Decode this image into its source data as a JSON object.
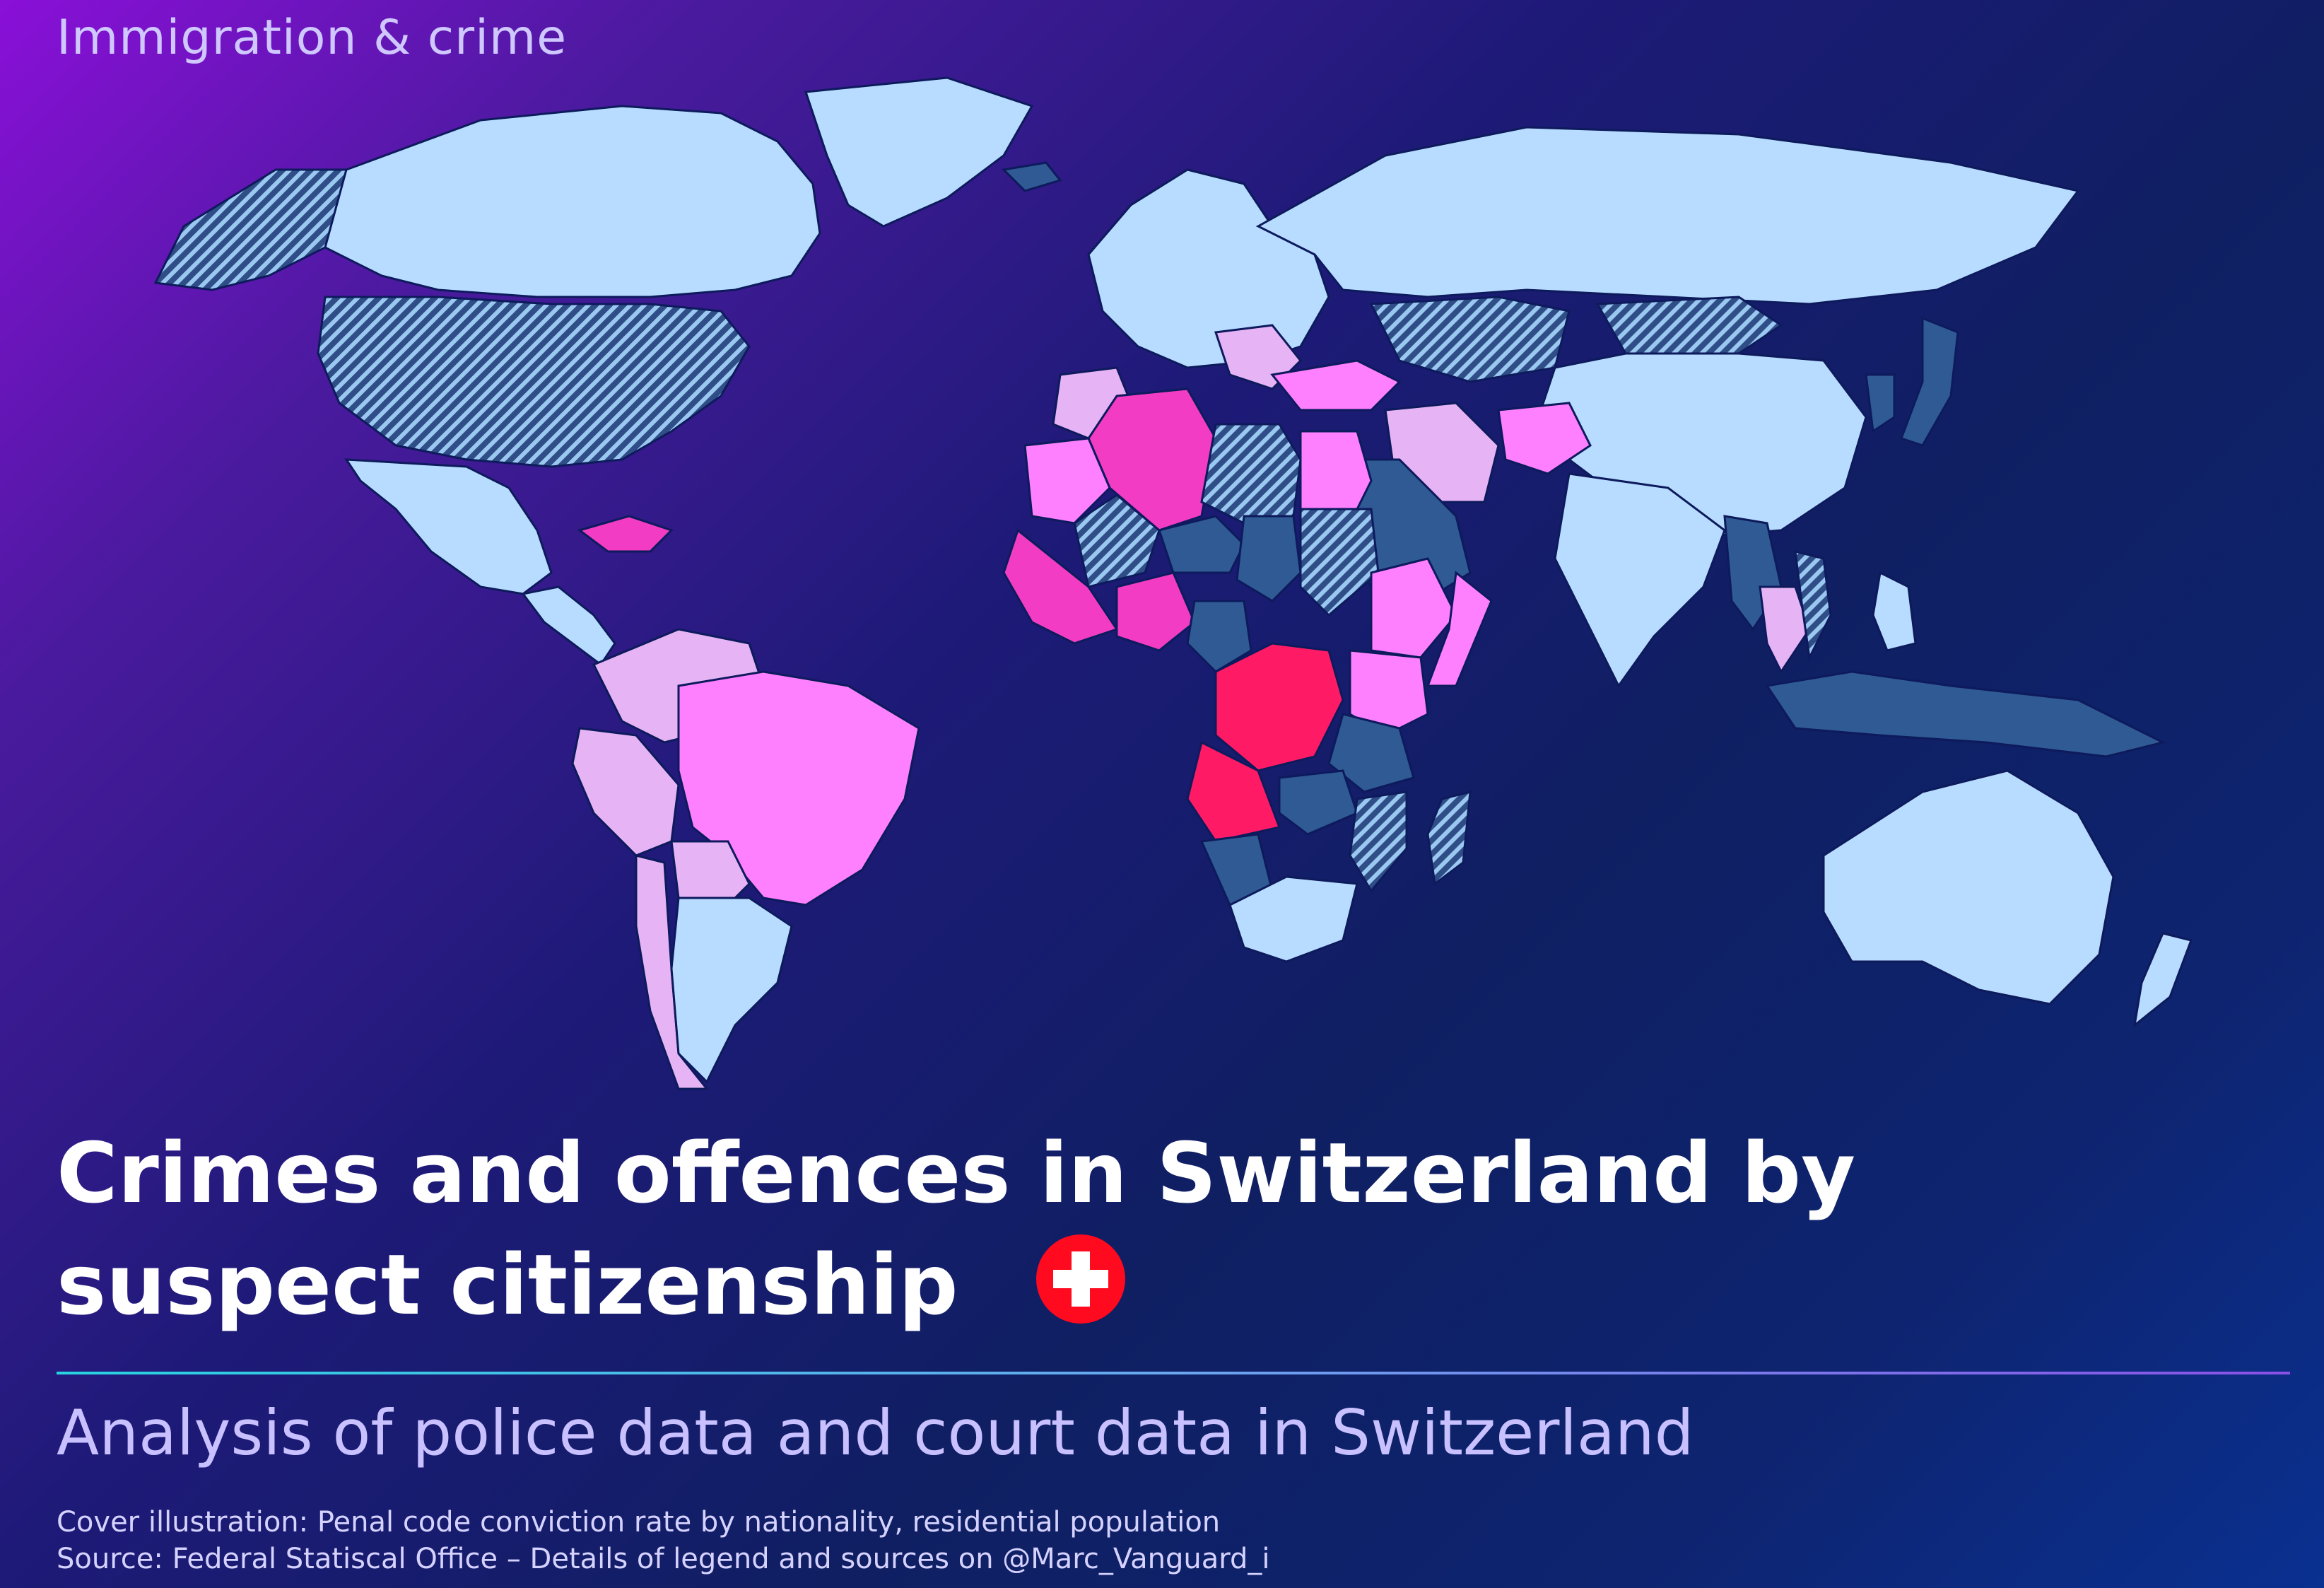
{
  "header": {
    "eyebrow": "Immigration & crime"
  },
  "map": {
    "type": "choropleth-world",
    "colors": {
      "ocean": "#0d1a5c",
      "lowest": "#b8dcff",
      "low": "#2f5a94",
      "mid_low": "#e6b4f5",
      "mid": "#ff80ff",
      "high": "#f23cc4",
      "highest": "#ff1a66",
      "hatch": "#9ac8f0"
    },
    "regions": [
      {
        "name": "Canada",
        "cls": "lowest"
      },
      {
        "name": "Greenland",
        "cls": "lowest"
      },
      {
        "name": "Alaska",
        "cls": "hatch"
      },
      {
        "name": "United States",
        "cls": "hatch"
      },
      {
        "name": "Mexico",
        "cls": "lowest"
      },
      {
        "name": "Cuba",
        "cls": "high"
      },
      {
        "name": "Central America",
        "cls": "lowest"
      },
      {
        "name": "Colombia",
        "cls": "mid_low"
      },
      {
        "name": "Brazil",
        "cls": "mid"
      },
      {
        "name": "Peru",
        "cls": "mid_low"
      },
      {
        "name": "Bolivia",
        "cls": "mid_low"
      },
      {
        "name": "Argentina",
        "cls": "lowest"
      },
      {
        "name": "Chile",
        "cls": "mid_low"
      },
      {
        "name": "Iceland",
        "cls": "low"
      },
      {
        "name": "Europe",
        "cls": "lowest"
      },
      {
        "name": "Balkans",
        "cls": "mid_low"
      },
      {
        "name": "Russia",
        "cls": "lowest"
      },
      {
        "name": "Kazakhstan",
        "cls": "hatch"
      },
      {
        "name": "Mongolia",
        "cls": "hatch"
      },
      {
        "name": "China",
        "cls": "lowest"
      },
      {
        "name": "Turkey",
        "cls": "mid"
      },
      {
        "name": "Iran",
        "cls": "mid_low"
      },
      {
        "name": "Afghanistan",
        "cls": "mid"
      },
      {
        "name": "Arabia",
        "cls": "low"
      },
      {
        "name": "India",
        "cls": "lowest"
      },
      {
        "name": "Myanmar",
        "cls": "low"
      },
      {
        "name": "Thailand",
        "cls": "mid_low"
      },
      {
        "name": "Vietnam",
        "cls": "hatch"
      },
      {
        "name": "Korea",
        "cls": "low"
      },
      {
        "name": "Japan",
        "cls": "low"
      },
      {
        "name": "Indonesia",
        "cls": "low"
      },
      {
        "name": "Philippines",
        "cls": "lowest"
      },
      {
        "name": "Australia",
        "cls": "lowest"
      },
      {
        "name": "New Zealand",
        "cls": "lowest"
      },
      {
        "name": "Morocco",
        "cls": "mid_low"
      },
      {
        "name": "Algeria",
        "cls": "high"
      },
      {
        "name": "Libya",
        "cls": "hatch"
      },
      {
        "name": "Egypt",
        "cls": "mid"
      },
      {
        "name": "Mauritania",
        "cls": "mid"
      },
      {
        "name": "Mali",
        "cls": "hatch"
      },
      {
        "name": "Niger",
        "cls": "low"
      },
      {
        "name": "Chad",
        "cls": "low"
      },
      {
        "name": "Sudan",
        "cls": "hatch"
      },
      {
        "name": "West Africa",
        "cls": "high"
      },
      {
        "name": "Nigeria",
        "cls": "high"
      },
      {
        "name": "Ethiopia",
        "cls": "mid"
      },
      {
        "name": "Somalia",
        "cls": "mid"
      },
      {
        "name": "Cameroon",
        "cls": "low"
      },
      {
        "name": "DR Congo",
        "cls": "highest"
      },
      {
        "name": "Angola",
        "cls": "highest"
      },
      {
        "name": "Kenya",
        "cls": "mid"
      },
      {
        "name": "Tanzania",
        "cls": "low"
      },
      {
        "name": "Zambia",
        "cls": "low"
      },
      {
        "name": "Mozambique",
        "cls": "hatch"
      },
      {
        "name": "Namibia",
        "cls": "low"
      },
      {
        "name": "South Africa",
        "cls": "lowest"
      },
      {
        "name": "Madagascar",
        "cls": "hatch"
      }
    ]
  },
  "title": "Crimes and offences in Switzerland by suspect citizenship",
  "subtitle": "Analysis of police data and court data in Switzerland",
  "captions": {
    "line1": "Cover illustration: Penal code conviction rate by nationality, residential population",
    "line2": "Source: Federal Statiscal Office – Details of legend and sources on @Marc_Vanguard_i"
  },
  "icons": {
    "flag": "swiss-flag-icon"
  }
}
